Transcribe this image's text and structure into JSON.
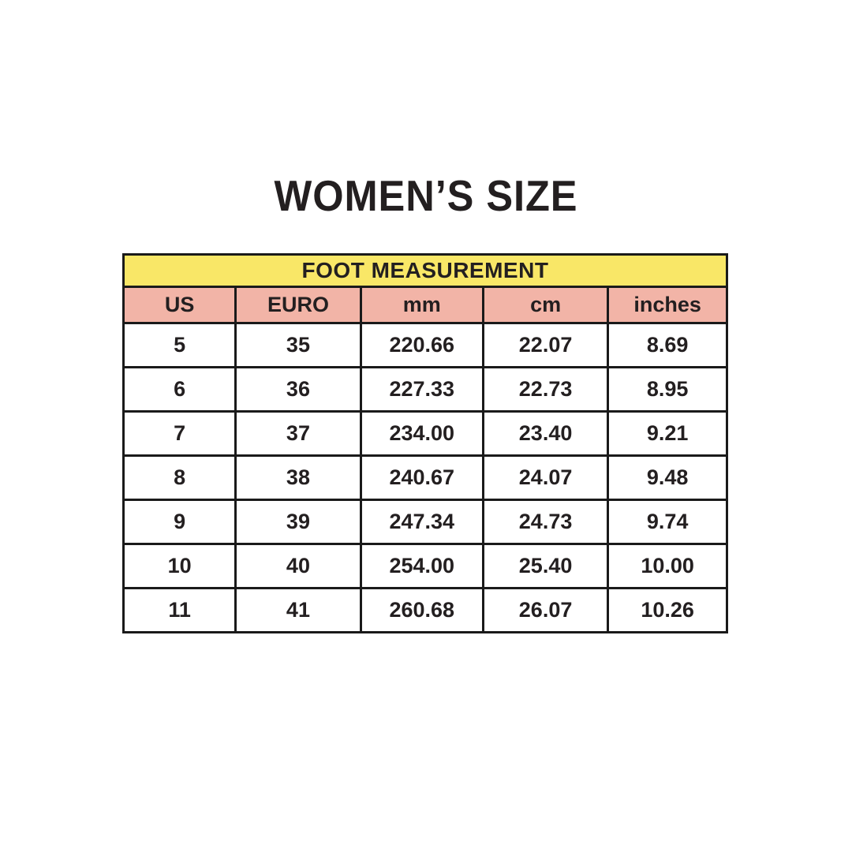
{
  "page": {
    "title": "WOMEN’S SIZE"
  },
  "colors": {
    "banner_yellow": "#F9E767",
    "header_pink": "#F2B4A7",
    "border_black": "#1A1A1A",
    "text_dark": "#231F20",
    "background": "#FFFFFF"
  },
  "chart_data": {
    "type": "table",
    "title": "WOMEN’S SIZE",
    "banner": "FOOT MEASUREMENT",
    "columns": [
      "US",
      "EURO",
      "mm",
      "cm",
      "inches"
    ],
    "rows": [
      [
        "5",
        "35",
        "220.66",
        "22.07",
        "8.69"
      ],
      [
        "6",
        "36",
        "227.33",
        "22.73",
        "8.95"
      ],
      [
        "7",
        "37",
        "234.00",
        "23.40",
        "9.21"
      ],
      [
        "8",
        "38",
        "240.67",
        "24.07",
        "9.48"
      ],
      [
        "9",
        "39",
        "247.34",
        "24.73",
        "9.74"
      ],
      [
        "10",
        "40",
        "254.00",
        "25.40",
        "10.00"
      ],
      [
        "11",
        "41",
        "260.68",
        "26.07",
        "10.26"
      ]
    ]
  }
}
